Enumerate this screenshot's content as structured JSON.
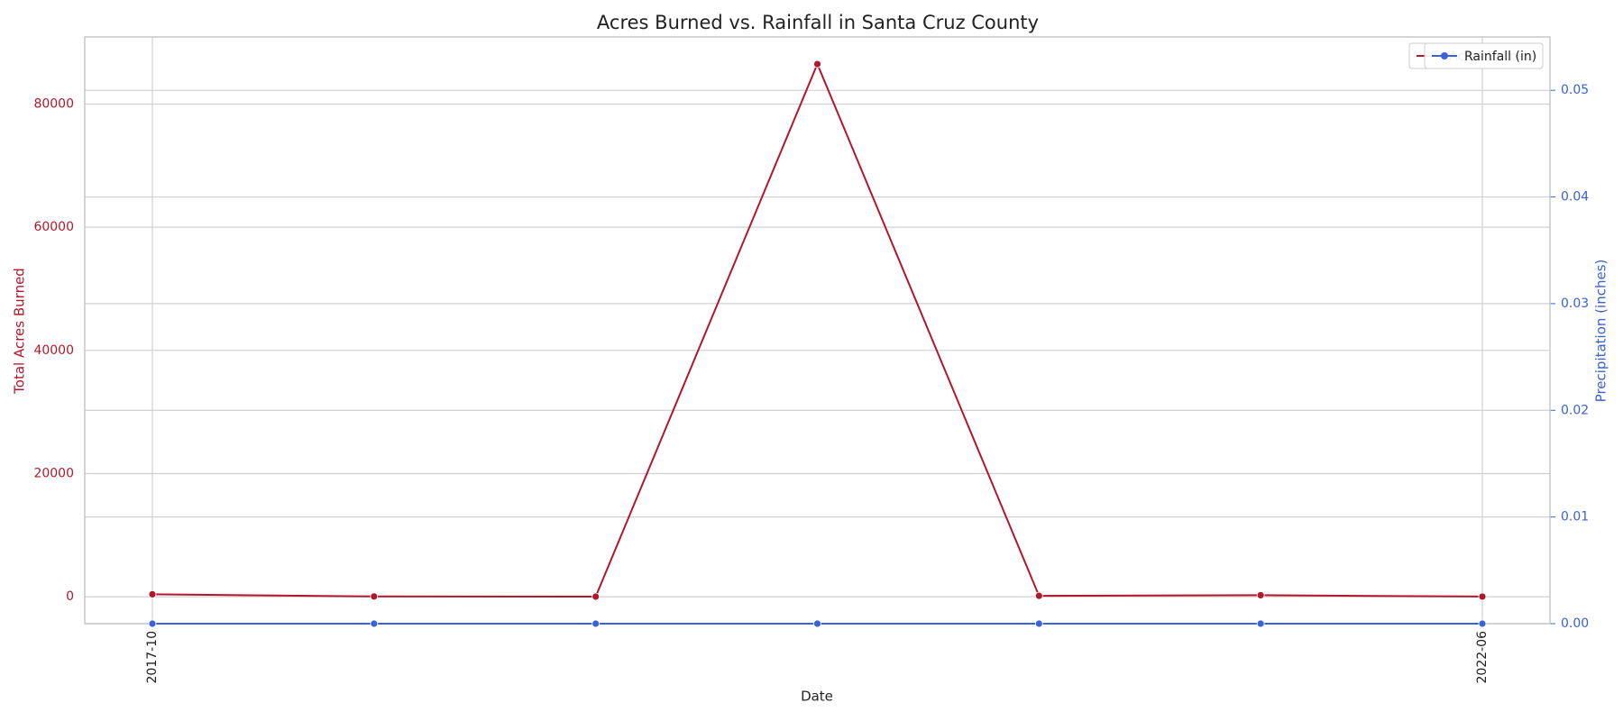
{
  "chart_data": {
    "type": "line",
    "title": "Acres Burned vs. Rainfall in Santa Cruz County",
    "x_label": "Date",
    "y_label": "Total Acres Burned",
    "y2_label": "Precipitation (inches)",
    "categories": [
      "2017-10",
      null,
      null,
      null,
      null,
      null,
      "2022-06"
    ],
    "series": [
      {
        "name": "Acres Burned",
        "color": "#b2182b",
        "values": [
          400,
          50,
          20,
          86500,
          150,
          250,
          30
        ]
      },
      {
        "name": "Rainfall (in)",
        "color": "#3a62d9",
        "axis": "y2",
        "values": [
          0,
          0,
          0,
          0,
          0,
          0,
          0
        ]
      }
    ],
    "ylim": [
      -4370,
      90900
    ],
    "yticks": [
      0,
      20000,
      40000,
      60000,
      80000
    ],
    "y2lim": [
      0,
      0.055
    ],
    "y2ticks": [
      {
        "value": 0,
        "label": "0.00"
      },
      {
        "value": 0.01,
        "label": "0.01"
      },
      {
        "value": 0.02,
        "label": "0.02"
      },
      {
        "value": 0.03,
        "label": "0.03"
      },
      {
        "value": 0.04,
        "label": "0.04"
      },
      {
        "value": 0.05,
        "label": "0.05"
      }
    ],
    "grid": true,
    "legend": "upper right"
  }
}
